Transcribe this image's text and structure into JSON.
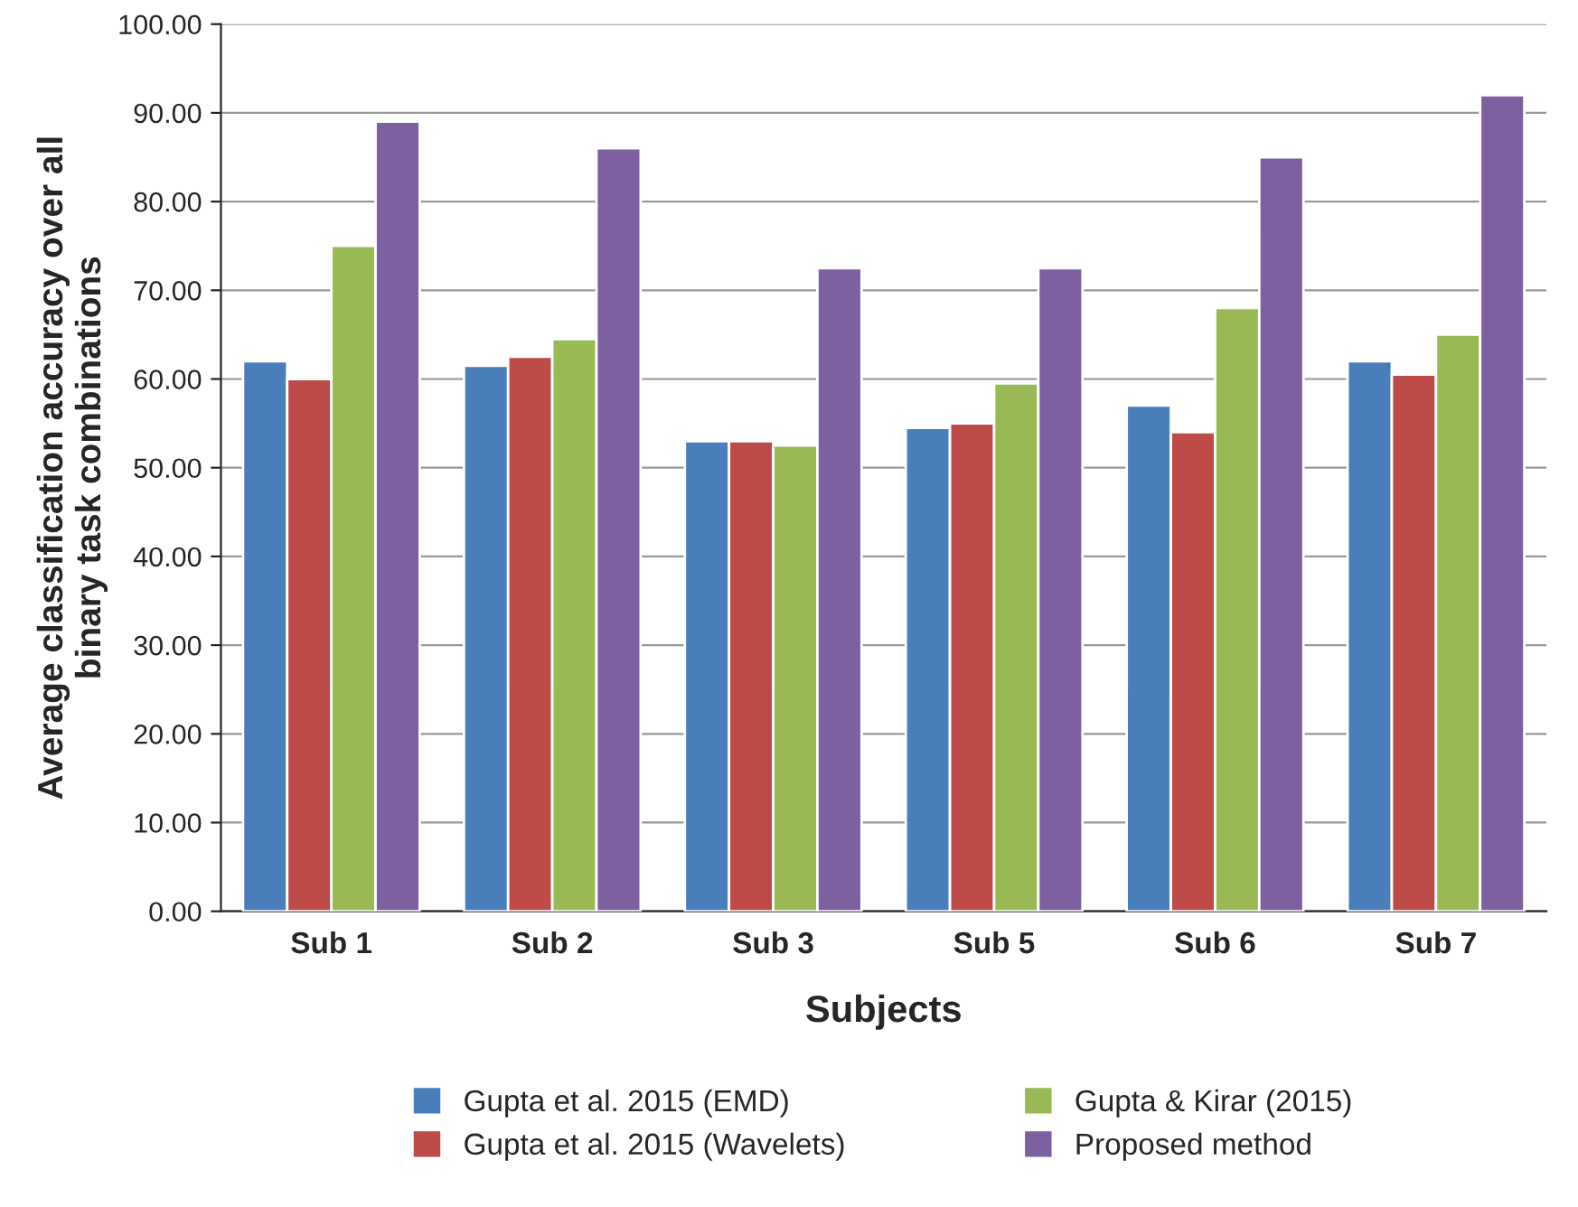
{
  "chart_data": {
    "type": "bar",
    "xlabel": "Subjects",
    "ylabel": "Average classification accuracy over all\nbinary task combinations",
    "categories": [
      "Sub 1",
      "Sub 2",
      "Sub 3",
      "Sub 5",
      "Sub 6",
      "Sub 7"
    ],
    "series": [
      {
        "name": "Gupta et al. 2015 (EMD)",
        "color": "#4a7ebb",
        "values": [
          62,
          61.5,
          53,
          54.5,
          57,
          62
        ]
      },
      {
        "name": "Gupta et al. 2015 (Wavelets)",
        "color": "#be4b48",
        "values": [
          60,
          62.5,
          53,
          55,
          54,
          60.5
        ]
      },
      {
        "name": "Gupta & Kirar (2015)",
        "color": "#98b954",
        "values": [
          75,
          64.5,
          52.5,
          59.5,
          68,
          65
        ]
      },
      {
        "name": "Proposed method",
        "color": "#7d60a0",
        "values": [
          89,
          86,
          72.5,
          72.5,
          85,
          92
        ]
      }
    ],
    "ylim": [
      0,
      100
    ],
    "yticks": [
      {
        "value": 0,
        "label": "0.00"
      },
      {
        "value": 10,
        "label": "10.00"
      },
      {
        "value": 20,
        "label": "20.00"
      },
      {
        "value": 30,
        "label": "30.00"
      },
      {
        "value": 40,
        "label": "40.00"
      },
      {
        "value": 50,
        "label": "50.00"
      },
      {
        "value": 60,
        "label": "60.00"
      },
      {
        "value": 70,
        "label": "70.00"
      },
      {
        "value": 80,
        "label": "80.00"
      },
      {
        "value": 90,
        "label": "90.00"
      },
      {
        "value": 100,
        "label": "100.00"
      }
    ],
    "grid": "y",
    "legend": "bottom"
  }
}
